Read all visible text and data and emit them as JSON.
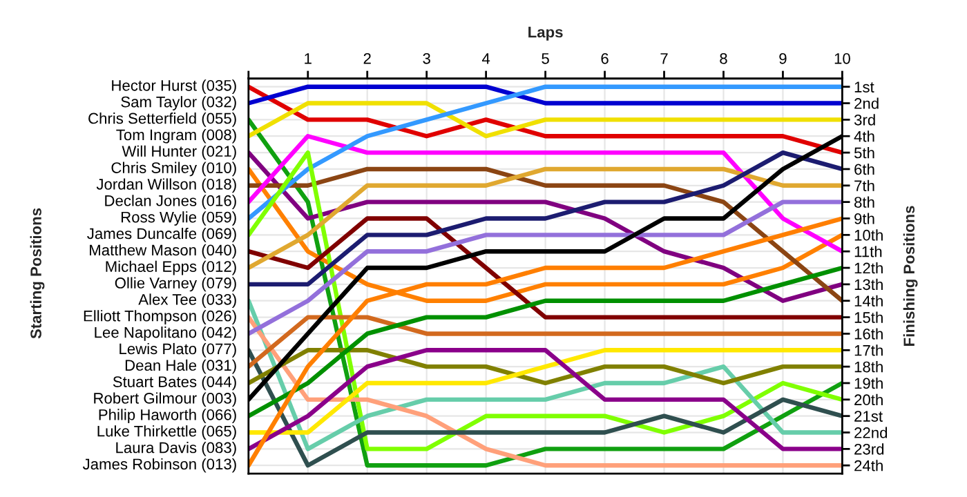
{
  "chart_data": {
    "type": "line",
    "xlabel": "Laps",
    "ylabel": "Finishing Positions",
    "legend_title": "Starting Positions",
    "legend": "left",
    "x": [
      0,
      1,
      2,
      3,
      4,
      5,
      6,
      7,
      8,
      9,
      10
    ],
    "xlim": [
      0,
      10
    ],
    "xticks": [
      {
        "value": 0,
        "label": null
      },
      1,
      2,
      3,
      4,
      5,
      6,
      7,
      8,
      9,
      10
    ],
    "ylim": [
      24.5,
      0.5
    ],
    "yticks": [
      {
        "value": 1,
        "label": "1st"
      },
      {
        "value": 2,
        "label": "2nd"
      },
      {
        "value": 3,
        "label": "3rd"
      },
      {
        "value": 4,
        "label": "4th"
      },
      {
        "value": 5,
        "label": "5th"
      },
      {
        "value": 6,
        "label": "6th"
      },
      {
        "value": 7,
        "label": "7th"
      },
      {
        "value": 8,
        "label": "8th"
      },
      {
        "value": 9,
        "label": "9th"
      },
      {
        "value": 10,
        "label": "10th"
      },
      {
        "value": 11,
        "label": "11th"
      },
      {
        "value": 12,
        "label": "12th"
      },
      {
        "value": 13,
        "label": "13th"
      },
      {
        "value": 14,
        "label": "14th"
      },
      {
        "value": 15,
        "label": "15th"
      },
      {
        "value": 16,
        "label": "16th"
      },
      {
        "value": 17,
        "label": "17th"
      },
      {
        "value": 18,
        "label": "18th"
      },
      {
        "value": 19,
        "label": "19th"
      },
      {
        "value": 20,
        "label": "20th"
      },
      {
        "value": 21,
        "label": "21st"
      },
      {
        "value": 22,
        "label": "22nd"
      },
      {
        "value": 23,
        "label": "23rd"
      },
      {
        "value": 24,
        "label": "24th"
      }
    ],
    "grid": true,
    "series": [
      {
        "name": "Hector Hurst (035)",
        "color": "#e00000",
        "values": [
          1,
          3,
          3,
          4,
          3,
          4,
          4,
          4,
          4,
          4,
          5
        ]
      },
      {
        "name": "Sam Taylor (032)",
        "color": "#0000d0",
        "values": [
          2,
          1,
          1,
          1,
          1,
          2,
          2,
          2,
          2,
          2,
          2
        ]
      },
      {
        "name": "Chris Setterfield (055)",
        "color": "#10a010",
        "values": [
          3,
          8,
          24,
          24,
          24,
          23,
          23,
          23,
          23,
          21,
          19
        ]
      },
      {
        "name": "Tom Ingram (008)",
        "color": "#f0e000",
        "values": [
          4,
          2,
          2,
          2,
          4,
          3,
          3,
          3,
          3,
          3,
          3
        ]
      },
      {
        "name": "Will Hunter (021)",
        "color": "#800080",
        "values": [
          5,
          9,
          8,
          8,
          8,
          8,
          9,
          11,
          12,
          14,
          13
        ]
      },
      {
        "name": "Chris Smiley (010)",
        "color": "#ff8000",
        "values": [
          6,
          11,
          13,
          14,
          14,
          13,
          13,
          13,
          13,
          12,
          10
        ]
      },
      {
        "name": "Jordan Willson (018)",
        "color": "#8b4513",
        "values": [
          7,
          7,
          6,
          6,
          6,
          7,
          7,
          7,
          8,
          11,
          14
        ]
      },
      {
        "name": "Declan Jones (016)",
        "color": "#ff00ff",
        "values": [
          8,
          4,
          5,
          5,
          5,
          5,
          5,
          5,
          5,
          9,
          11
        ]
      },
      {
        "name": "Ross Wylie (059)",
        "color": "#3399ff",
        "values": [
          9,
          6,
          4,
          3,
          2,
          1,
          1,
          1,
          1,
          1,
          1
        ]
      },
      {
        "name": "James Duncalfe (069)",
        "color": "#80ff00",
        "values": [
          10,
          5,
          23,
          23,
          21,
          21,
          21,
          22,
          21,
          19,
          20
        ]
      },
      {
        "name": "Matthew Mason (040)",
        "color": "#800000",
        "values": [
          11,
          12,
          9,
          9,
          12,
          15,
          15,
          15,
          15,
          15,
          15
        ]
      },
      {
        "name": "Michael Epps (012)",
        "color": "#e0a830",
        "values": [
          12,
          10,
          7,
          7,
          7,
          6,
          6,
          6,
          6,
          7,
          7
        ]
      },
      {
        "name": "Ollie Varney (079)",
        "color": "#1c1c70",
        "values": [
          13,
          13,
          10,
          10,
          9,
          9,
          8,
          8,
          7,
          5,
          6
        ]
      },
      {
        "name": "Alex Tee (033)",
        "color": "#66cdaa",
        "values": [
          14,
          23,
          21,
          20,
          20,
          20,
          19,
          19,
          18,
          22,
          22
        ]
      },
      {
        "name": "Elliott Thompson (026)",
        "color": "#ffa07a",
        "values": [
          15,
          20,
          20,
          21,
          23,
          24,
          24,
          24,
          24,
          24,
          24
        ]
      },
      {
        "name": "Lee Napolitano (042)",
        "color": "#9370db",
        "values": [
          16,
          14,
          11,
          11,
          10,
          10,
          10,
          10,
          10,
          8,
          8
        ]
      },
      {
        "name": "Lewis Plato (077)",
        "color": "#2f4f4f",
        "values": [
          17,
          24,
          22,
          22,
          22,
          22,
          22,
          21,
          22,
          20,
          21
        ]
      },
      {
        "name": "Dean Hale (031)",
        "color": "#d2691e",
        "values": [
          18,
          15,
          15,
          16,
          16,
          16,
          16,
          16,
          16,
          16,
          16
        ]
      },
      {
        "name": "Stuart Bates (044)",
        "color": "#808000",
        "values": [
          19,
          17,
          17,
          18,
          18,
          19,
          18,
          18,
          19,
          18,
          18
        ]
      },
      {
        "name": "Robert Gilmour (003)",
        "color": "#000000",
        "values": [
          20,
          16,
          12,
          12,
          11,
          11,
          11,
          9,
          9,
          6,
          4
        ]
      },
      {
        "name": "Philip Haworth (066)",
        "color": "#009000",
        "values": [
          21,
          19,
          16,
          15,
          15,
          14,
          14,
          14,
          14,
          13,
          12
        ]
      },
      {
        "name": "Luke Thirkettle (065)",
        "color": "#ffe800",
        "values": [
          22,
          22,
          19,
          19,
          19,
          18,
          17,
          17,
          17,
          17,
          17
        ]
      },
      {
        "name": "Laura Davis (083)",
        "color": "#8a008a",
        "values": [
          23,
          21,
          18,
          17,
          17,
          17,
          20,
          20,
          20,
          23,
          23
        ]
      },
      {
        "name": "James Robinson (013)",
        "color": "#ff7f00",
        "values": [
          24,
          18,
          14,
          13,
          13,
          12,
          12,
          12,
          11,
          10,
          9
        ]
      }
    ]
  }
}
